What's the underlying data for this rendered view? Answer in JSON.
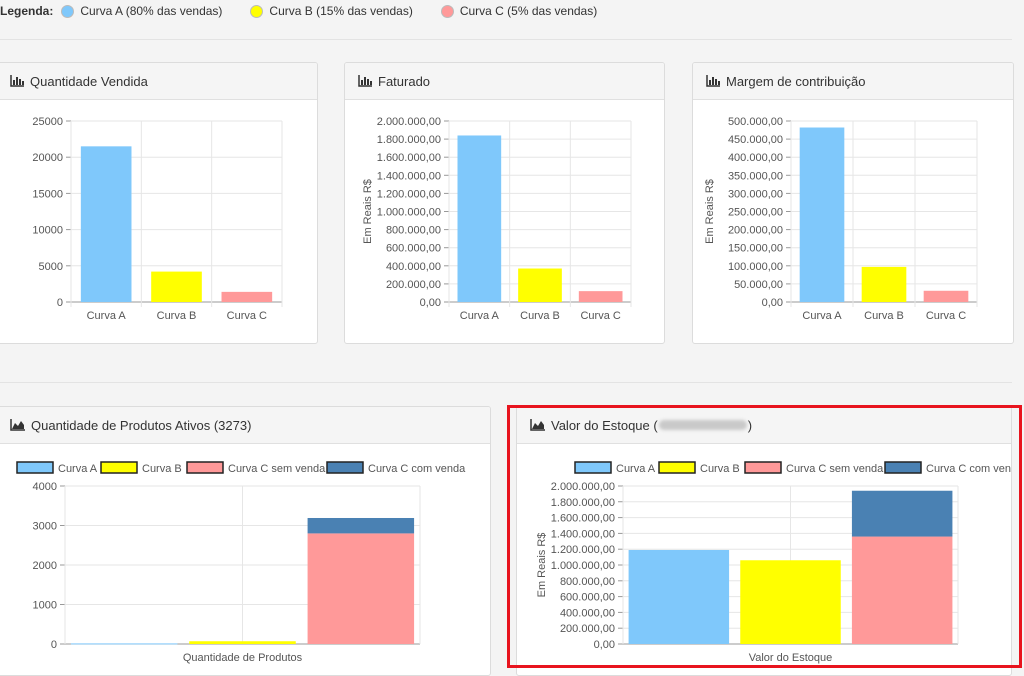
{
  "legend": {
    "label": "Legenda:",
    "items": [
      {
        "label": "Curva A (80% das vendas)",
        "color": "#7fc8fb"
      },
      {
        "label": "Curva B (15% das vendas)",
        "color": "#ffff00"
      },
      {
        "label": "Curva C (5% das vendas)",
        "color": "#ff9999"
      }
    ]
  },
  "panels": {
    "qtd": {
      "title": "Quantidade Vendida"
    },
    "fat": {
      "title": "Faturado"
    },
    "margem": {
      "title": "Margem de contribuição"
    },
    "ativos": {
      "title": "Quantidade de Produtos Ativos (3273)"
    },
    "estoque": {
      "title_prefix": "Valor do Estoque (",
      "title_suffix": ")"
    }
  },
  "colors": {
    "curva_a": "#7fc8fb",
    "curva_b": "#ffff00",
    "curva_c": "#ff9999",
    "curva_c_venda": "#4a81b3"
  },
  "chart_data": [
    {
      "id": "qtd",
      "type": "bar",
      "categories": [
        "Curva A",
        "Curva B",
        "Curva C"
      ],
      "values": [
        21500,
        4200,
        1400
      ],
      "ylim": [
        0,
        25000
      ],
      "yticks": [
        0,
        5000,
        10000,
        15000,
        20000,
        25000
      ],
      "ytick_labels": [
        "0",
        "5000",
        "10000",
        "15000",
        "20000",
        "25000"
      ],
      "ylabel": "",
      "colors": [
        "#7fc8fb",
        "#ffff00",
        "#ff9999"
      ]
    },
    {
      "id": "fat",
      "type": "bar",
      "categories": [
        "Curva A",
        "Curva B",
        "Curva C"
      ],
      "values": [
        1840000,
        370000,
        120000
      ],
      "ylim": [
        0,
        2000000
      ],
      "yticks": [
        0,
        200000,
        400000,
        600000,
        800000,
        1000000,
        1200000,
        1400000,
        1600000,
        1800000,
        2000000
      ],
      "ytick_labels": [
        "0,00",
        "200.000,00",
        "400.000,00",
        "600.000,00",
        "800.000,00",
        "1.000.000,00",
        "1.200.000,00",
        "1.400.000,00",
        "1.600.000,00",
        "1.800.000,00",
        "2.000.000,00"
      ],
      "ylabel": "Em Reais R$",
      "colors": [
        "#7fc8fb",
        "#ffff00",
        "#ff9999"
      ]
    },
    {
      "id": "margem",
      "type": "bar",
      "categories": [
        "Curva A",
        "Curva B",
        "Curva C"
      ],
      "values": [
        482000,
        97000,
        31000
      ],
      "ylim": [
        0,
        500000
      ],
      "yticks": [
        0,
        50000,
        100000,
        150000,
        200000,
        250000,
        300000,
        350000,
        400000,
        450000,
        500000
      ],
      "ytick_labels": [
        "0,00",
        "50.000,00",
        "100.000,00",
        "150.000,00",
        "200.000,00",
        "250.000,00",
        "300.000,00",
        "350.000,00",
        "400.000,00",
        "450.000,00",
        "500.000,00"
      ],
      "ylabel": "Em Reais R$",
      "colors": [
        "#7fc8fb",
        "#ffff00",
        "#ff9999"
      ]
    },
    {
      "id": "ativos",
      "type": "bar",
      "categories": [
        "Quantidade de Produtos"
      ],
      "legend": [
        "Curva A",
        "Curva B",
        "Curva C sem venda",
        "Curva C com venda"
      ],
      "series": [
        {
          "name": "Curva A",
          "values": [
            15
          ],
          "color": "#7fc8fb",
          "stack": "a"
        },
        {
          "name": "Curva B",
          "values": [
            70
          ],
          "color": "#ffff00",
          "stack": "b"
        },
        {
          "name": "Curva C sem venda",
          "values": [
            2800
          ],
          "color": "#ff9999",
          "stack": "c"
        },
        {
          "name": "Curva C com venda",
          "values": [
            390
          ],
          "color": "#4a81b3",
          "stack": "c"
        }
      ],
      "ylim": [
        0,
        4000
      ],
      "yticks": [
        0,
        1000,
        2000,
        3000,
        4000
      ],
      "ytick_labels": [
        "0",
        "1000",
        "2000",
        "3000",
        "4000"
      ],
      "ylabel": ""
    },
    {
      "id": "estoque",
      "type": "bar",
      "categories": [
        "Valor do Estoque"
      ],
      "legend": [
        "Curva A",
        "Curva B",
        "Curva C sem venda",
        "Curva C com venda"
      ],
      "series": [
        {
          "name": "Curva A",
          "values": [
            1190000
          ],
          "color": "#7fc8fb",
          "stack": "a"
        },
        {
          "name": "Curva B",
          "values": [
            1060000
          ],
          "color": "#ffff00",
          "stack": "b"
        },
        {
          "name": "Curva C sem venda",
          "values": [
            1360000
          ],
          "color": "#ff9999",
          "stack": "c"
        },
        {
          "name": "Curva C com venda",
          "values": [
            580000
          ],
          "color": "#4a81b3",
          "stack": "c"
        }
      ],
      "ylim": [
        0,
        2000000
      ],
      "yticks": [
        0,
        200000,
        400000,
        600000,
        800000,
        1000000,
        1200000,
        1400000,
        1600000,
        1800000,
        2000000
      ],
      "ytick_labels": [
        "0,00",
        "200.000,00",
        "400.000,00",
        "600.000,00",
        "800.000,00",
        "1.000.000,00",
        "1.200.000,00",
        "1.400.000,00",
        "1.600.000,00",
        "1.800.000,00",
        "2.000.000,00"
      ],
      "ylabel": "Em Reais R$"
    }
  ]
}
